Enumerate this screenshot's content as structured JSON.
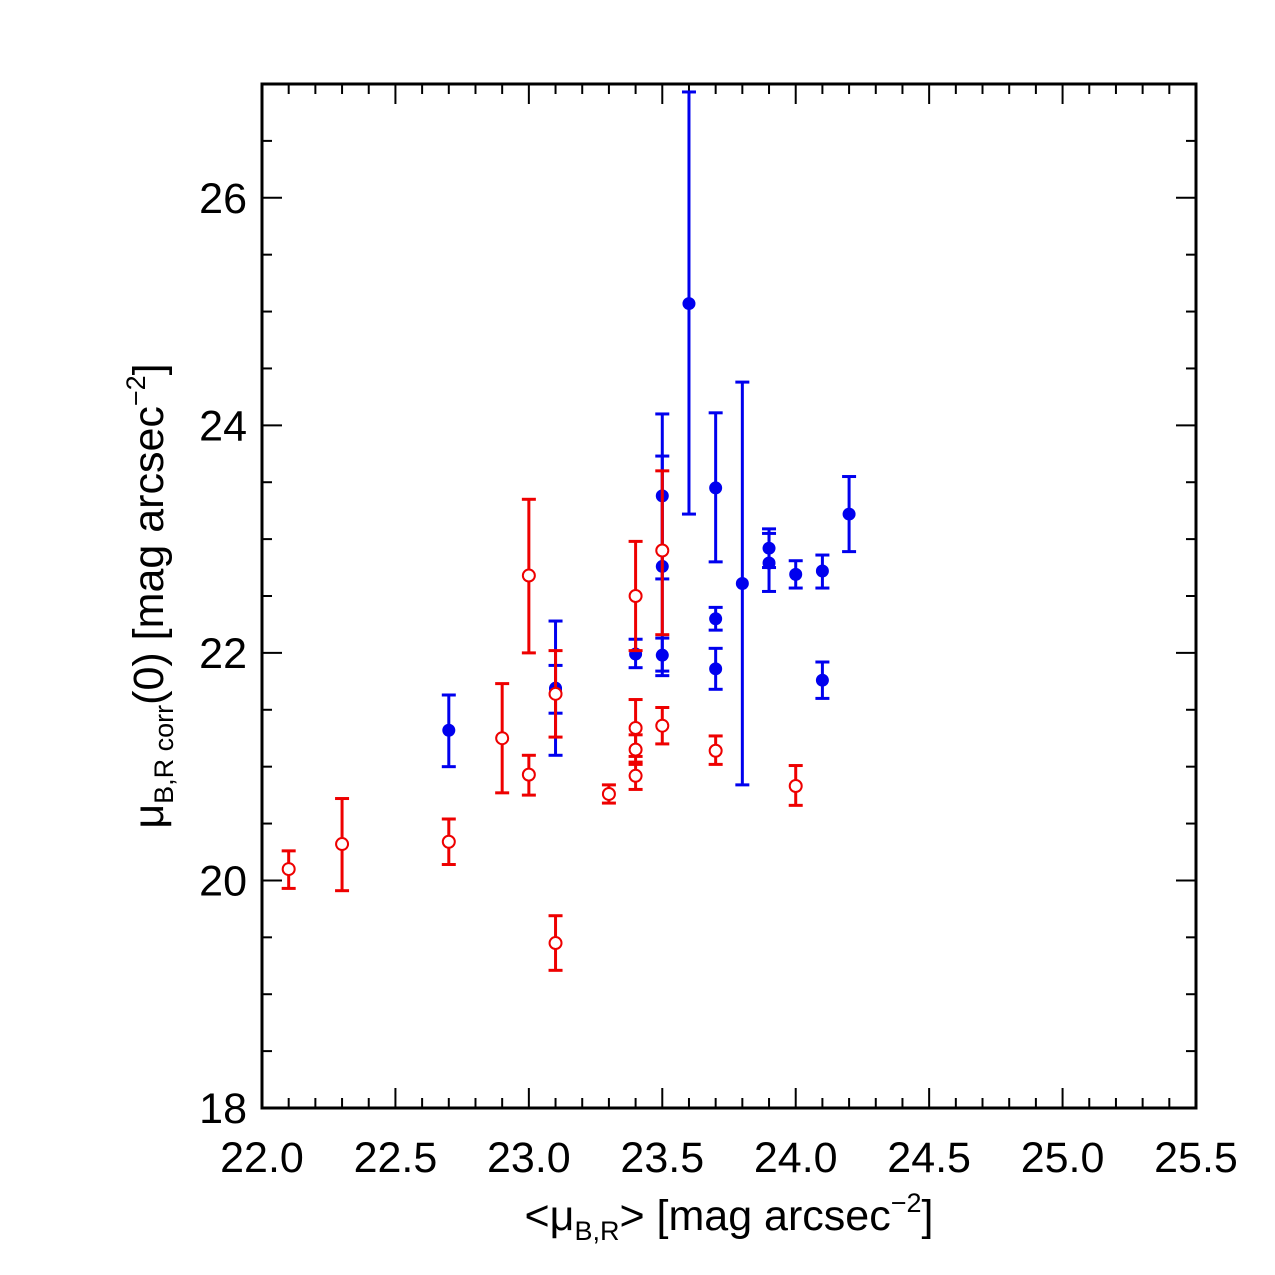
{
  "chart_data": {
    "type": "scatter",
    "title": "",
    "xlabel": {
      "prefix": "<μ",
      "sub": "B,R",
      "middle": "> [mag arcsec",
      "sup": "−2",
      "suffix": "]"
    },
    "ylabel": {
      "prefix": "μ",
      "sub": "B,R corr",
      "middle": "(0) [mag arcsec",
      "sup": "−2",
      "suffix": "]"
    },
    "xlim": [
      22.0,
      25.5
    ],
    "ylim": [
      18.0,
      27.0
    ],
    "xticks": [
      "22.0",
      "22.5",
      "23.0",
      "23.5",
      "24.0",
      "24.5",
      "25.0",
      "25.5"
    ],
    "yticks": [
      "18",
      "20",
      "22",
      "24",
      "26"
    ],
    "grid": false,
    "series": [
      {
        "marker": "filled-circle",
        "color": "#0000ee",
        "points": [
          {
            "x": 22.7,
            "y": 21.32,
            "lo": 21.0,
            "hi": 21.63
          },
          {
            "x": 23.1,
            "y": 21.69,
            "lo": 21.1,
            "hi": 22.28
          },
          {
            "x": 23.1,
            "y": 21.68,
            "lo": 21.47,
            "hi": 21.89
          },
          {
            "x": 23.4,
            "y": 21.99,
            "lo": 21.87,
            "hi": 22.12
          },
          {
            "x": 23.5,
            "y": 23.38,
            "lo": 22.65,
            "hi": 24.1
          },
          {
            "x": 23.5,
            "y": 22.76,
            "lo": 21.8,
            "hi": 23.73
          },
          {
            "x": 23.5,
            "y": 21.98,
            "lo": 21.84,
            "hi": 22.13
          },
          {
            "x": 23.6,
            "y": 25.07,
            "lo": 23.22,
            "hi": 26.93
          },
          {
            "x": 23.7,
            "y": 23.45,
            "lo": 22.8,
            "hi": 24.11
          },
          {
            "x": 23.7,
            "y": 22.3,
            "lo": 22.2,
            "hi": 22.4
          },
          {
            "x": 23.7,
            "y": 21.86,
            "lo": 21.68,
            "hi": 22.04
          },
          {
            "x": 23.8,
            "y": 22.61,
            "lo": 20.84,
            "hi": 24.38
          },
          {
            "x": 23.9,
            "y": 22.92,
            "lo": 22.75,
            "hi": 23.09
          },
          {
            "x": 23.9,
            "y": 22.79,
            "lo": 22.54,
            "hi": 23.05
          },
          {
            "x": 24.0,
            "y": 22.69,
            "lo": 22.57,
            "hi": 22.81
          },
          {
            "x": 24.1,
            "y": 22.72,
            "lo": 22.57,
            "hi": 22.86
          },
          {
            "x": 24.1,
            "y": 21.76,
            "lo": 21.6,
            "hi": 21.92
          },
          {
            "x": 24.2,
            "y": 23.22,
            "lo": 22.89,
            "hi": 23.55
          }
        ]
      },
      {
        "marker": "open-circle",
        "color": "#ee0000",
        "points": [
          {
            "x": 22.1,
            "y": 20.1,
            "lo": 19.93,
            "hi": 20.26
          },
          {
            "x": 22.3,
            "y": 20.32,
            "lo": 19.91,
            "hi": 20.72
          },
          {
            "x": 22.7,
            "y": 20.34,
            "lo": 20.14,
            "hi": 20.54
          },
          {
            "x": 22.9,
            "y": 21.25,
            "lo": 20.77,
            "hi": 21.73
          },
          {
            "x": 23.0,
            "y": 22.68,
            "lo": 22.0,
            "hi": 23.35
          },
          {
            "x": 23.0,
            "y": 20.93,
            "lo": 20.75,
            "hi": 21.1
          },
          {
            "x": 23.1,
            "y": 21.64,
            "lo": 21.26,
            "hi": 22.02
          },
          {
            "x": 23.1,
            "y": 19.45,
            "lo": 19.21,
            "hi": 19.69
          },
          {
            "x": 23.3,
            "y": 20.76,
            "lo": 20.68,
            "hi": 20.84
          },
          {
            "x": 23.4,
            "y": 22.5,
            "lo": 22.02,
            "hi": 22.98
          },
          {
            "x": 23.4,
            "y": 21.34,
            "lo": 21.09,
            "hi": 21.59
          },
          {
            "x": 23.4,
            "y": 21.15,
            "lo": 21.02,
            "hi": 21.28
          },
          {
            "x": 23.4,
            "y": 20.92,
            "lo": 20.8,
            "hi": 21.04
          },
          {
            "x": 23.5,
            "y": 22.9,
            "lo": 22.16,
            "hi": 23.6
          },
          {
            "x": 23.5,
            "y": 21.36,
            "lo": 21.2,
            "hi": 21.52
          },
          {
            "x": 23.7,
            "y": 21.14,
            "lo": 21.02,
            "hi": 21.27
          },
          {
            "x": 24.0,
            "y": 20.83,
            "lo": 20.66,
            "hi": 21.01
          }
        ]
      }
    ]
  }
}
